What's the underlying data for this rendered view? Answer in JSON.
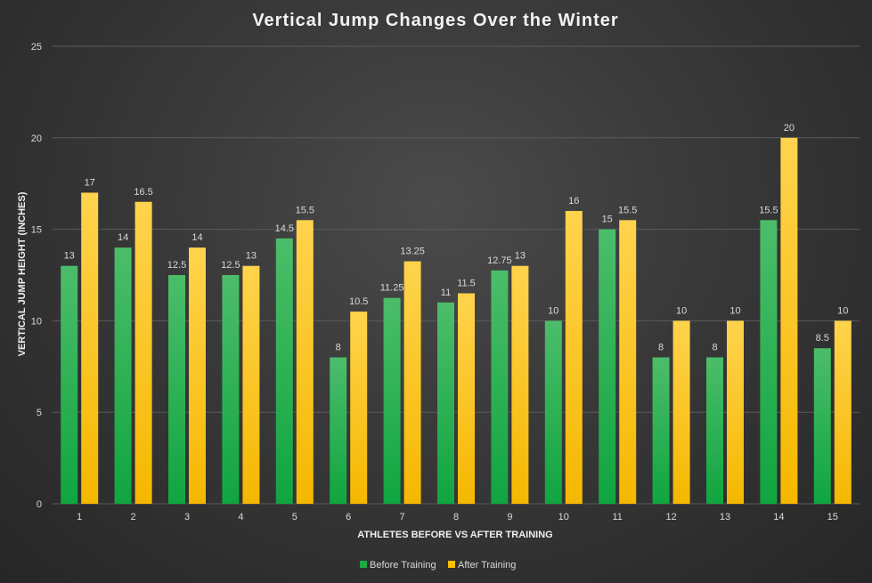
{
  "chart_data": {
    "type": "bar",
    "title": "Vertical Jump Changes Over the Winter",
    "xlabel": "ATHLETES BEFORE VS AFTER TRAINING",
    "ylabel": "VERTICAL JUMP HEIGHT (INCHES)",
    "ylim": [
      0,
      25
    ],
    "yticks": [
      "0",
      "5",
      "10",
      "15",
      "20",
      "25"
    ],
    "categories": [
      "1",
      "2",
      "3",
      "4",
      "5",
      "6",
      "7",
      "8",
      "9",
      "10",
      "11",
      "12",
      "13",
      "14",
      "15"
    ],
    "series": [
      {
        "name": "Before Training",
        "color": "#1fa84a",
        "values": [
          13,
          14,
          12.5,
          12.5,
          14.5,
          8,
          11.25,
          11,
          12.75,
          10,
          15,
          8,
          8,
          15.5,
          8.5
        ],
        "labels": [
          "13",
          "14",
          "12.5",
          "12.5",
          "14.5",
          "8",
          "11.25",
          "11",
          "12.75",
          "10",
          "15",
          "8",
          "8",
          "15.5",
          "8.5"
        ]
      },
      {
        "name": "After Training",
        "color": "#ffc000",
        "values": [
          17,
          16.5,
          14,
          13,
          15.5,
          10.5,
          13.25,
          11.5,
          13,
          16,
          15.5,
          10,
          10,
          20,
          10
        ],
        "labels": [
          "17",
          "16.5",
          "14",
          "13",
          "15.5",
          "10.5",
          "13.25",
          "11.5",
          "13",
          "16",
          "15.5",
          "10",
          "10",
          "20",
          "10"
        ]
      }
    ],
    "grid": true,
    "legend_position": "bottom"
  }
}
